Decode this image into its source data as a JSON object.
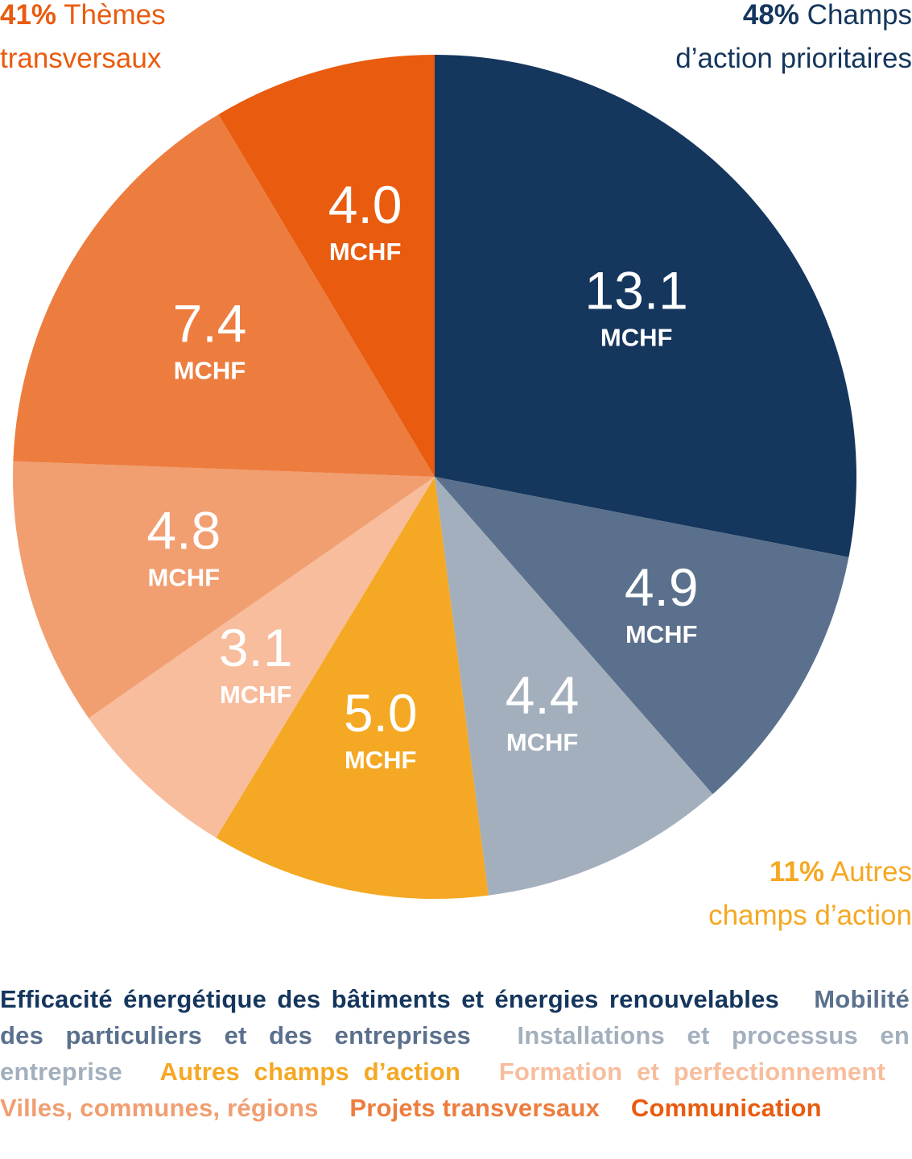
{
  "chart_data": {
    "type": "pie",
    "unit": "MCHF",
    "slices": [
      {
        "label": "Efficacité énergétique des bâtiments et énergies renouvelables",
        "value": 13.1,
        "value_text": "13.1",
        "color": "#15365d"
      },
      {
        "label": "Mobilité des particuliers et des entreprises",
        "value": 4.9,
        "value_text": "4.9",
        "color": "#5a708c"
      },
      {
        "label": "Installations et processus en entreprise",
        "value": 4.4,
        "value_text": "4.4",
        "color": "#a3afbd"
      },
      {
        "label": "Autres champs d’action",
        "value": 5.0,
        "value_text": "5.0",
        "color": "#f5a823"
      },
      {
        "label": "Formation et perfectionnement",
        "value": 3.1,
        "value_text": "3.1",
        "color": "#f7bd9d"
      },
      {
        "label": "Villes, communes, régions",
        "value": 4.8,
        "value_text": "4.8",
        "color": "#f19e71"
      },
      {
        "label": "Projets transversaux",
        "value": 7.4,
        "value_text": "7.4",
        "color": "#ed7d3f"
      },
      {
        "label": "Communication",
        "value": 4.0,
        "value_text": "4.0",
        "color": "#e95b0f"
      }
    ],
    "groups": {
      "themes": {
        "pct": "41%",
        "text": "Thèmes transversaux",
        "line1": "Thèmes",
        "line2": "transversaux",
        "color": "#e95b0f"
      },
      "priority": {
        "pct": "48%",
        "text": "Champs d’action prioritaires",
        "line1": "Champs",
        "line2": "d’action prioritaires",
        "color": "#15365d"
      },
      "other": {
        "pct": "11%",
        "text": "Autres champs d’action",
        "line1": "Autres",
        "line2": "champs d’action",
        "color": "#f5a823"
      }
    }
  },
  "legend": [
    {
      "text": "Efficacité énergétique des bâtiments et énergies renouvelables",
      "display": "Efficacité énergétique des bâtiments et énergies renouve­lables",
      "color": "#15365d"
    },
    {
      "text": "Mobilité des particuliers et des entreprises",
      "display": "Mobilité des particuliers et des entreprises",
      "color": "#5a708c"
    },
    {
      "text": "Installations et processus en entreprise",
      "display": "Installations et processus en entreprise",
      "color": "#a3afbd"
    },
    {
      "text": "Autres champs d’action",
      "display": "Autres champs d’action",
      "color": "#f5a823"
    },
    {
      "text": "Formation et perfectionnement",
      "display": "Formation et perfectionnement",
      "color": "#f7bd9d"
    },
    {
      "text": "Villes, communes, régions",
      "display": "Villes, communes, régions",
      "color": "#f19e71"
    },
    {
      "text": "Projets transversaux",
      "display": "Projets trans­versaux",
      "color": "#ed7d3f"
    },
    {
      "text": "Communication",
      "display": "Communication",
      "color": "#e95b0f"
    }
  ]
}
